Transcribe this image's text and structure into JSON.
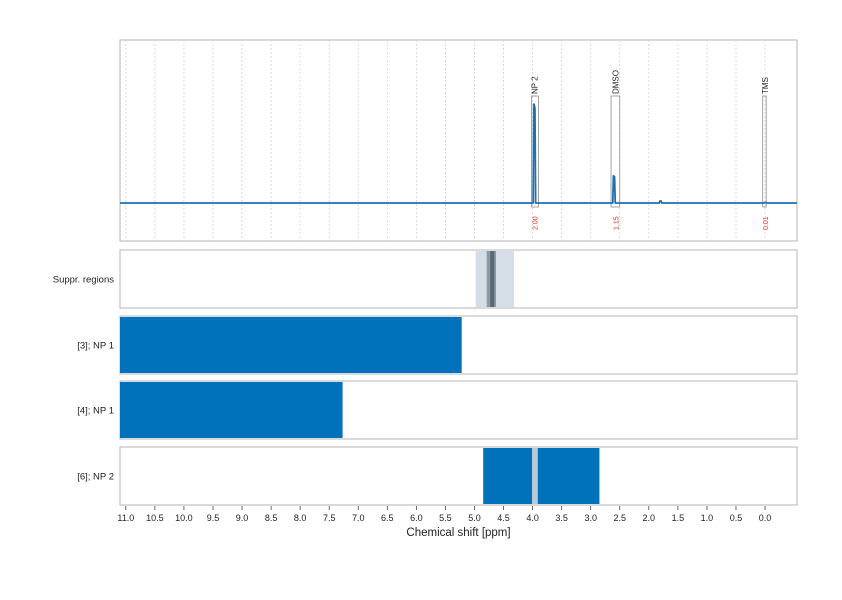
{
  "chart_data": {
    "type": "line",
    "x_label": "Chemical shift [ppm]",
    "x_range": [
      11.1,
      -0.55
    ],
    "x_reversed": true,
    "x_ticks": [
      11.0,
      10.5,
      10.0,
      9.5,
      9.0,
      8.5,
      8.0,
      7.5,
      7.0,
      6.5,
      6.0,
      5.5,
      5.0,
      4.5,
      4.0,
      3.5,
      3.0,
      2.5,
      2.0,
      1.5,
      1.0,
      0.5,
      0.0
    ],
    "x_tick_labels": [
      "11.0",
      "10.5",
      "10.0",
      "9.5",
      "9.0",
      "8.5",
      "8.0",
      "7.5",
      "7.0",
      "6.5",
      "6.0",
      "5.5",
      "5.0",
      "4.5",
      "4.0",
      "3.5",
      "3.0",
      "2.5",
      "2.0",
      "1.5",
      "1.0",
      "0.5",
      "0.0"
    ],
    "grid": "vertical dashed, spectrum panel only",
    "spectrum": {
      "color": "#1f6fb2",
      "baseline": 0,
      "y_max": 1.0,
      "peaks": [
        {
          "shift": 3.97,
          "height": 0.98
        },
        {
          "shift": 2.6,
          "height": 0.27
        },
        {
          "shift": 1.8,
          "height": 0.02
        },
        {
          "shift": 0.0,
          "height": 0.005
        }
      ]
    },
    "annotations": [
      {
        "label": "NP 2",
        "shift": 3.97,
        "range": [
          4.02,
          3.9
        ],
        "integral": "2.00"
      },
      {
        "label": "DMSO",
        "shift": 2.57,
        "range": [
          2.65,
          2.5
        ],
        "integral": "1.15"
      },
      {
        "label": "TMS",
        "shift": 0.0,
        "range": [
          0.04,
          -0.02
        ],
        "integral": "0.01"
      }
    ],
    "region_rows": [
      {
        "label": "Suppr. regions",
        "regions": [
          {
            "from": 4.98,
            "to": 4.32,
            "color": "#d5dee6"
          },
          {
            "from": 4.79,
            "to": 4.63,
            "color": "#8a9aa6"
          },
          {
            "from": 4.73,
            "to": 4.66,
            "color": "#5b6b76"
          }
        ]
      },
      {
        "label": "[3]; NP 1",
        "regions": [
          {
            "from": 11.1,
            "to": 5.22,
            "color": "#0071bb"
          }
        ]
      },
      {
        "label": "[4]; NP 1",
        "regions": [
          {
            "from": 11.1,
            "to": 7.27,
            "color": "#0071bb"
          }
        ]
      },
      {
        "label": "[6]; NP 2",
        "regions": [
          {
            "from": 4.85,
            "to": 2.85,
            "color": "#0071bb"
          },
          {
            "from": 4.01,
            "to": 3.91,
            "color": "#b9cad6"
          }
        ]
      }
    ]
  }
}
